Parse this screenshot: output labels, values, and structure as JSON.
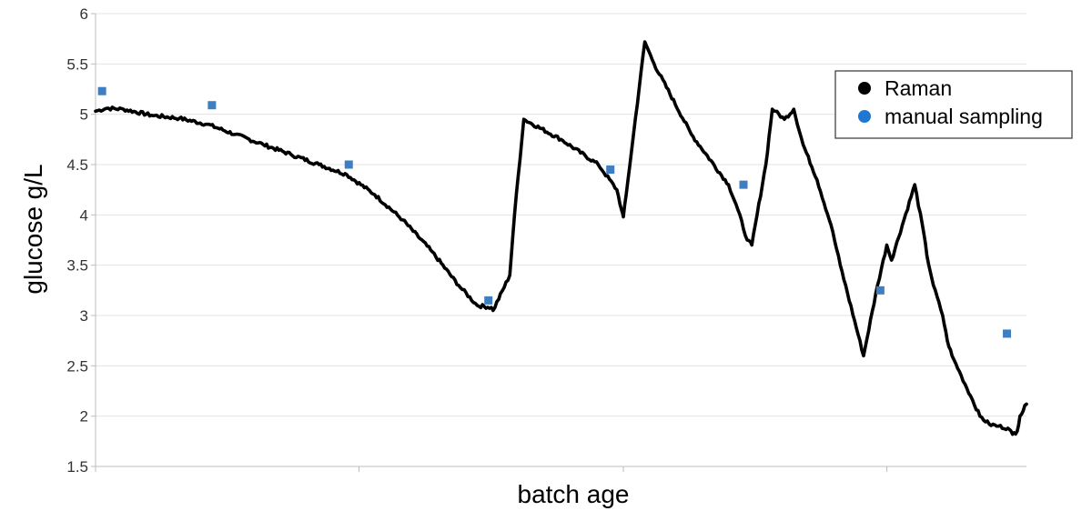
{
  "chart_data": {
    "type": "line",
    "title": "",
    "xlabel": "batch age",
    "ylabel": "glucose g/L",
    "xlim": [
      0,
      1
    ],
    "ylim": [
      1.5,
      6
    ],
    "yticks": [
      1.5,
      2,
      2.5,
      3,
      3.5,
      4,
      4.5,
      5,
      5.5,
      6
    ],
    "ytick_labels": [
      "1.5",
      "2",
      "2.5",
      "3",
      "3.5",
      "4",
      "4.5",
      "5",
      "5.5",
      "6"
    ],
    "grid": true,
    "legend": "top-right",
    "series": [
      {
        "name": "Raman",
        "kind": "line",
        "color": "#000000",
        "x": [
          0.0,
          0.012,
          0.03,
          0.06,
          0.09,
          0.12,
          0.15,
          0.18,
          0.21,
          0.24,
          0.27,
          0.3,
          0.33,
          0.36,
          0.39,
          0.41,
          0.425,
          0.427,
          0.445,
          0.45,
          0.46,
          0.5,
          0.54,
          0.56,
          0.565,
          0.567,
          0.57,
          0.59,
          0.6,
          0.64,
          0.68,
          0.69,
          0.7,
          0.705,
          0.72,
          0.727,
          0.73,
          0.74,
          0.75,
          0.76,
          0.775,
          0.79,
          0.8,
          0.825,
          0.84,
          0.85,
          0.855,
          0.88,
          0.89,
          0.893,
          0.9,
          0.91,
          0.915,
          0.92,
          0.93,
          0.94,
          0.95,
          0.96,
          0.97,
          0.98,
          0.985,
          0.99,
          0.993,
          1.0
        ],
        "y": [
          5.03,
          5.06,
          5.05,
          4.99,
          4.96,
          4.9,
          4.8,
          4.7,
          4.6,
          4.5,
          4.4,
          4.2,
          3.95,
          3.65,
          3.3,
          3.1,
          3.08,
          3.05,
          3.4,
          4.0,
          4.95,
          4.75,
          4.5,
          4.25,
          4.05,
          3.98,
          4.2,
          5.72,
          5.5,
          4.8,
          4.3,
          4.05,
          3.75,
          3.7,
          4.5,
          5.05,
          5.03,
          4.95,
          5.05,
          4.7,
          4.35,
          3.9,
          3.5,
          2.6,
          3.3,
          3.7,
          3.55,
          4.3,
          3.8,
          3.6,
          3.3,
          3.0,
          2.75,
          2.6,
          2.4,
          2.2,
          2.0,
          1.92,
          1.9,
          1.88,
          1.82,
          1.85,
          2.0,
          2.12
        ]
      },
      {
        "name": "manual sampling",
        "kind": "scatter",
        "color": "#3f7fc1",
        "legend_color": "#1f77d4",
        "x": [
          0.007,
          0.125,
          0.272,
          0.422,
          0.553,
          0.696,
          0.843,
          0.979
        ],
        "y": [
          5.23,
          5.09,
          4.5,
          3.15,
          4.45,
          4.3,
          3.25,
          2.82
        ]
      }
    ]
  }
}
